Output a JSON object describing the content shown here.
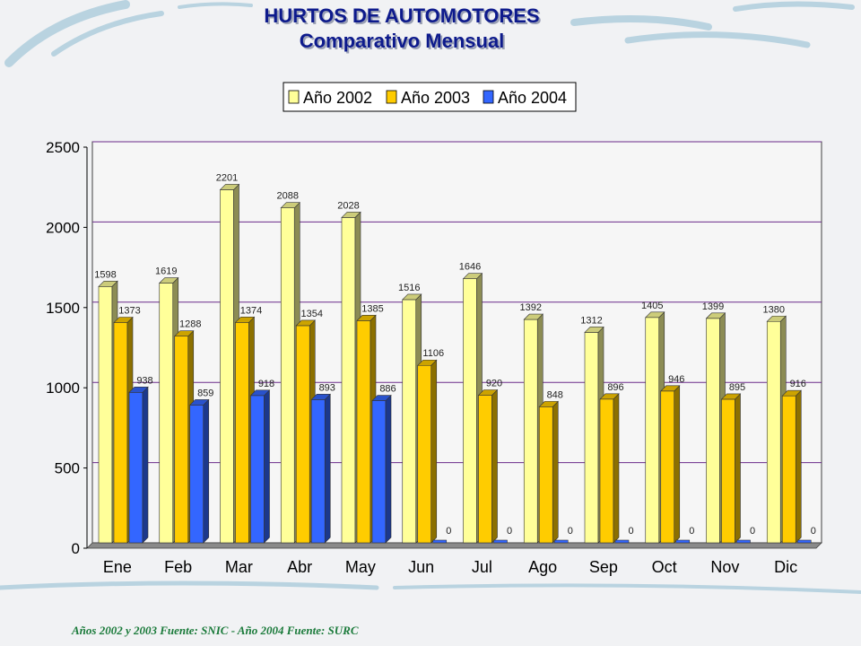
{
  "title": {
    "line1": "HURTOS DE AUTOMOTORES",
    "line2": "Comparativo Mensual"
  },
  "footer": "Años 2002 y 2003 Fuente: SNIC - Año 2004 Fuente: SURC",
  "colors": {
    "series_2002": "#ffff99",
    "series_2003": "#ffcc00",
    "series_2004": "#3366ff",
    "gridline": "#6a2a8a",
    "title": "#0d1a8c",
    "footer": "#1a7a3a"
  },
  "chart_data": {
    "type": "bar",
    "title": "",
    "xlabel": "",
    "ylabel": "",
    "ylim": [
      0,
      2500
    ],
    "yticks": [
      0,
      500,
      1000,
      1500,
      2000,
      2500
    ],
    "grid": true,
    "legend_position": "top",
    "categories": [
      "Ene",
      "Feb",
      "Mar",
      "Abr",
      "May",
      "Jun",
      "Jul",
      "Ago",
      "Sep",
      "Oct",
      "Nov",
      "Dic"
    ],
    "series": [
      {
        "name": "Año 2002",
        "values": [
          1598,
          1619,
          2201,
          2088,
          2028,
          1516,
          1646,
          1392,
          1312,
          1405,
          1399,
          1380
        ]
      },
      {
        "name": "Año 2003",
        "values": [
          1373,
          1288,
          1374,
          1354,
          1385,
          1106,
          920,
          848,
          896,
          946,
          895,
          916
        ]
      },
      {
        "name": "Año 2004",
        "values": [
          938,
          859,
          918,
          893,
          886,
          0,
          0,
          0,
          0,
          0,
          0,
          0
        ]
      }
    ]
  }
}
